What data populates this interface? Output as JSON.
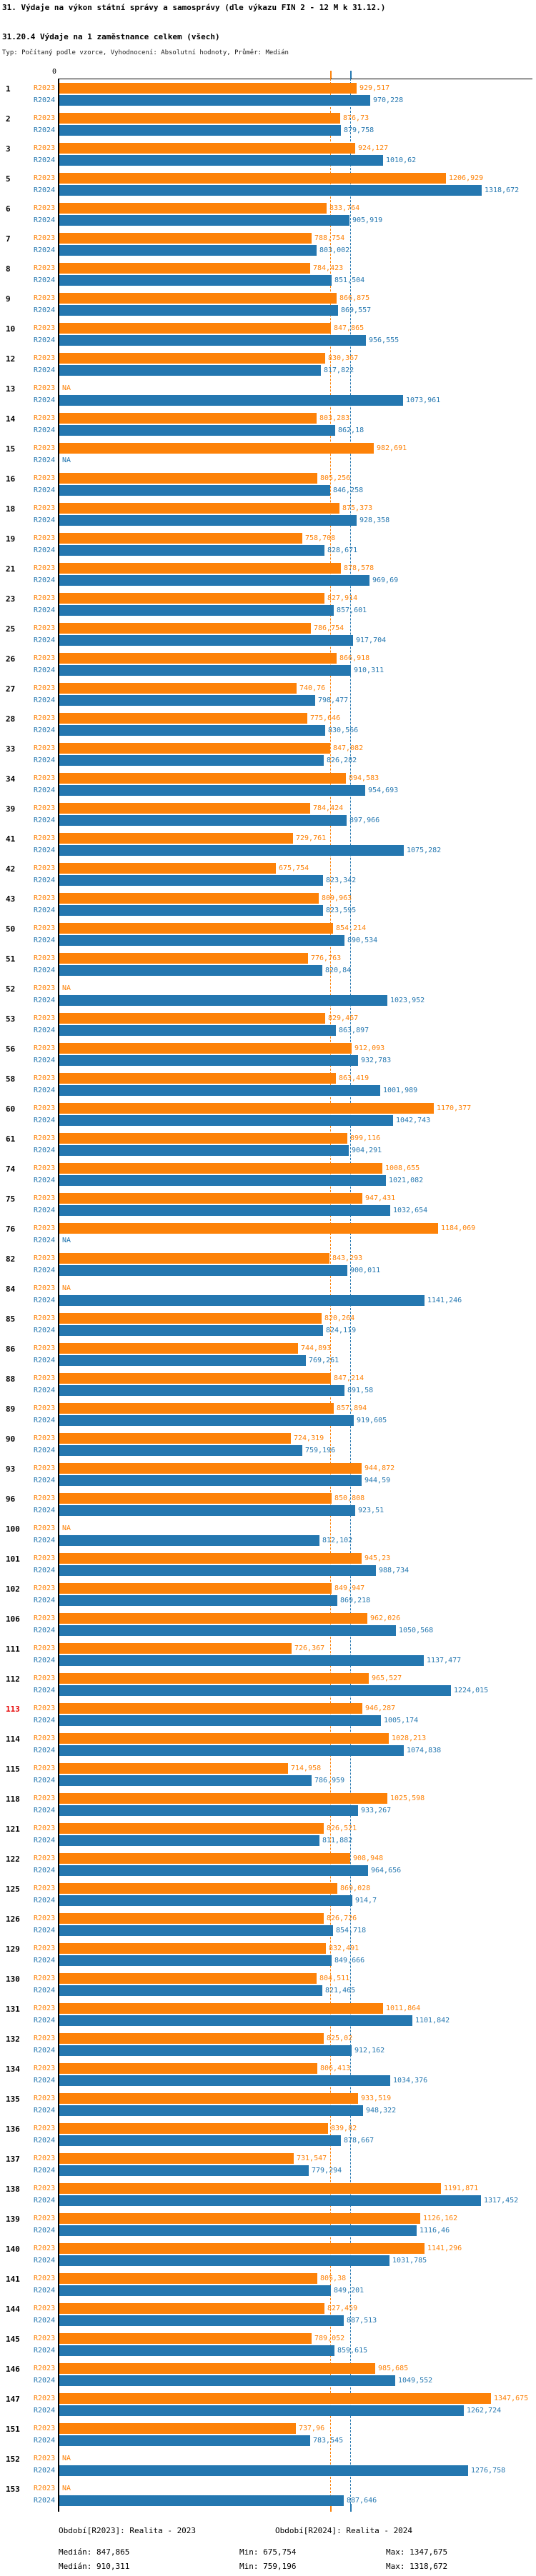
{
  "title": "31. Výdaje na výkon státní správy a samosprávy (dle výkazu FIN 2 - 12 M k 31.12.)",
  "subtitle": "31.20.4 Výdaje na 1 zaměstnance celkem (všech)",
  "type_line": "Typ: Počítaný podle vzorce, Vyhodnocení: Absolutní hodnoty, Průměr: Medián",
  "legend": {
    "r2023": {
      "period": "Období[R2023]: Realita - 2023",
      "median": "Medián: 847,865",
      "min": "Min: 675,754",
      "max": "Max: 1347,675"
    },
    "r2024": {
      "period": "Období[R2024]: Realita - 2024",
      "median": "Medián: 910,311",
      "min": "Min: 759,196",
      "max": "Max: 1318,672"
    }
  },
  "chart_data": {
    "type": "bar",
    "orientation": "horizontal",
    "title": "31.20.4 Výdaje na 1 zaměstnance celkem (všech)",
    "xlabel": "",
    "ylabel": "",
    "axis": {
      "zero_label": "0",
      "x_min": 0,
      "x_max": 1400,
      "grid": false
    },
    "legend_position": "bottom",
    "series": [
      {
        "key": "r2023",
        "label": "R2023",
        "color": "#fd8208",
        "period": "Realita - 2023"
      },
      {
        "key": "r2024",
        "label": "R2024",
        "color": "#2477b0",
        "period": "Realita - 2024"
      }
    ],
    "medians": {
      "r2023": "847,865",
      "r2024": "910,311"
    },
    "highlighted_ids": [
      "113"
    ],
    "highlight_color": "#e60000",
    "na_label": "NA",
    "groups": [
      {
        "id": "1",
        "r2023": "929,517",
        "r2024": "970,228"
      },
      {
        "id": "2",
        "r2023": "876,73",
        "r2024": "879,758"
      },
      {
        "id": "3",
        "r2023": "924,127",
        "r2024": "1010,62"
      },
      {
        "id": "5",
        "r2023": "1206,929",
        "r2024": "1318,672"
      },
      {
        "id": "6",
        "r2023": "833,764",
        "r2024": "905,919"
      },
      {
        "id": "7",
        "r2023": "788,754",
        "r2024": "803,002"
      },
      {
        "id": "8",
        "r2023": "784,423",
        "r2024": "851,504"
      },
      {
        "id": "9",
        "r2023": "866,875",
        "r2024": "869,557"
      },
      {
        "id": "10",
        "r2023": "847,865",
        "r2024": "956,555"
      },
      {
        "id": "12",
        "r2023": "830,367",
        "r2024": "817,822"
      },
      {
        "id": "13",
        "r2023": "NA",
        "r2024": "1073,961"
      },
      {
        "id": "14",
        "r2023": "803,283",
        "r2024": "862,18"
      },
      {
        "id": "15",
        "r2023": "982,691",
        "r2024": "NA"
      },
      {
        "id": "16",
        "r2023": "805,256",
        "r2024": "846,258"
      },
      {
        "id": "18",
        "r2023": "875,373",
        "r2024": "928,358"
      },
      {
        "id": "19",
        "r2023": "758,708",
        "r2024": "828,671"
      },
      {
        "id": "21",
        "r2023": "878,578",
        "r2024": "969,69"
      },
      {
        "id": "23",
        "r2023": "827,914",
        "r2024": "857,601"
      },
      {
        "id": "25",
        "r2023": "786,754",
        "r2024": "917,704"
      },
      {
        "id": "26",
        "r2023": "866,918",
        "r2024": "910,311"
      },
      {
        "id": "27",
        "r2023": "740,76",
        "r2024": "798,477"
      },
      {
        "id": "28",
        "r2023": "775,646",
        "r2024": "830,566"
      },
      {
        "id": "33",
        "r2023": "847,082",
        "r2024": "826,282"
      },
      {
        "id": "34",
        "r2023": "894,583",
        "r2024": "954,693"
      },
      {
        "id": "39",
        "r2023": "784,424",
        "r2024": "897,966"
      },
      {
        "id": "41",
        "r2023": "729,761",
        "r2024": "1075,282"
      },
      {
        "id": "42",
        "r2023": "675,754",
        "r2024": "823,342"
      },
      {
        "id": "43",
        "r2023": "809,963",
        "r2024": "823,595"
      },
      {
        "id": "50",
        "r2023": "854,214",
        "r2024": "890,534"
      },
      {
        "id": "51",
        "r2023": "776,763",
        "r2024": "820,84"
      },
      {
        "id": "52",
        "r2023": "NA",
        "r2024": "1023,952"
      },
      {
        "id": "53",
        "r2023": "829,467",
        "r2024": "863,897"
      },
      {
        "id": "56",
        "r2023": "912,093",
        "r2024": "932,783"
      },
      {
        "id": "58",
        "r2023": "863,419",
        "r2024": "1001,989"
      },
      {
        "id": "60",
        "r2023": "1170,377",
        "r2024": "1042,743"
      },
      {
        "id": "61",
        "r2023": "899,116",
        "r2024": "904,291"
      },
      {
        "id": "74",
        "r2023": "1008,655",
        "r2024": "1021,082"
      },
      {
        "id": "75",
        "r2023": "947,431",
        "r2024": "1032,654"
      },
      {
        "id": "76",
        "r2023": "1184,069",
        "r2024": "NA"
      },
      {
        "id": "82",
        "r2023": "843,293",
        "r2024": "900,011"
      },
      {
        "id": "84",
        "r2023": "NA",
        "r2024": "1141,246"
      },
      {
        "id": "85",
        "r2023": "820,264",
        "r2024": "824,119"
      },
      {
        "id": "86",
        "r2023": "744,893",
        "r2024": "769,261"
      },
      {
        "id": "88",
        "r2023": "847,214",
        "r2024": "891,58"
      },
      {
        "id": "89",
        "r2023": "857,894",
        "r2024": "919,605"
      },
      {
        "id": "90",
        "r2023": "724,319",
        "r2024": "759,196"
      },
      {
        "id": "93",
        "r2023": "944,872",
        "r2024": "944,59"
      },
      {
        "id": "96",
        "r2023": "850,808",
        "r2024": "923,51"
      },
      {
        "id": "100",
        "r2023": "NA",
        "r2024": "812,102"
      },
      {
        "id": "101",
        "r2023": "945,23",
        "r2024": "988,734"
      },
      {
        "id": "102",
        "r2023": "849,947",
        "r2024": "869,218"
      },
      {
        "id": "106",
        "r2023": "962,026",
        "r2024": "1050,568"
      },
      {
        "id": "111",
        "r2023": "726,367",
        "r2024": "1137,477"
      },
      {
        "id": "112",
        "r2023": "965,527",
        "r2024": "1224,015"
      },
      {
        "id": "113",
        "r2023": "946,287",
        "r2024": "1005,174"
      },
      {
        "id": "114",
        "r2023": "1028,213",
        "r2024": "1074,838"
      },
      {
        "id": "115",
        "r2023": "714,958",
        "r2024": "786,959"
      },
      {
        "id": "118",
        "r2023": "1025,598",
        "r2024": "933,267"
      },
      {
        "id": "121",
        "r2023": "826,521",
        "r2024": "811,882"
      },
      {
        "id": "122",
        "r2023": "908,948",
        "r2024": "964,656"
      },
      {
        "id": "125",
        "r2023": "869,028",
        "r2024": "914,7"
      },
      {
        "id": "126",
        "r2023": "826,726",
        "r2024": "854,718"
      },
      {
        "id": "129",
        "r2023": "832,491",
        "r2024": "849,666"
      },
      {
        "id": "130",
        "r2023": "804,511",
        "r2024": "821,465"
      },
      {
        "id": "131",
        "r2023": "1011,864",
        "r2024": "1101,842"
      },
      {
        "id": "132",
        "r2023": "825,02",
        "r2024": "912,162"
      },
      {
        "id": "134",
        "r2023": "806,413",
        "r2024": "1034,376"
      },
      {
        "id": "135",
        "r2023": "933,519",
        "r2024": "948,322"
      },
      {
        "id": "136",
        "r2023": "839,82",
        "r2024": "878,667"
      },
      {
        "id": "137",
        "r2023": "731,547",
        "r2024": "779,294"
      },
      {
        "id": "138",
        "r2023": "1191,871",
        "r2024": "1317,452"
      },
      {
        "id": "139",
        "r2023": "1126,162",
        "r2024": "1116,46"
      },
      {
        "id": "140",
        "r2023": "1141,296",
        "r2024": "1031,785"
      },
      {
        "id": "141",
        "r2023": "805,38",
        "r2024": "849,201"
      },
      {
        "id": "144",
        "r2023": "827,459",
        "r2024": "887,513"
      },
      {
        "id": "145",
        "r2023": "789,052",
        "r2024": "859,615"
      },
      {
        "id": "146",
        "r2023": "985,685",
        "r2024": "1049,552"
      },
      {
        "id": "147",
        "r2023": "1347,675",
        "r2024": "1262,724"
      },
      {
        "id": "151",
        "r2023": "737,96",
        "r2024": "783,545"
      },
      {
        "id": "152",
        "r2023": "NA",
        "r2024": "1276,758"
      },
      {
        "id": "153",
        "r2023": "NA",
        "r2024": "887,646"
      }
    ]
  }
}
